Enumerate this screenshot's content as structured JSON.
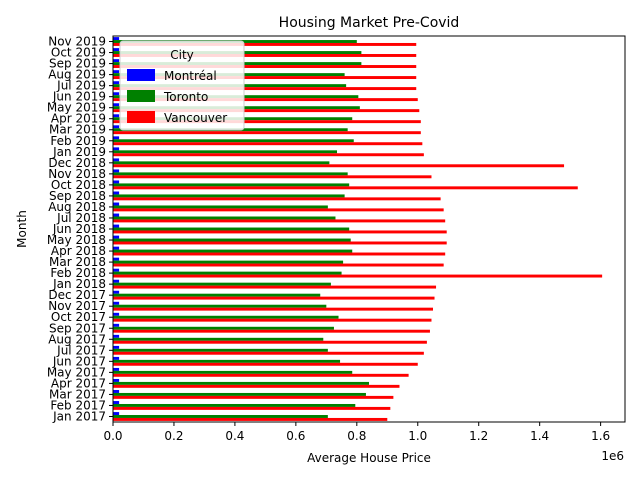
{
  "chart_data": {
    "type": "bar",
    "orientation": "horizontal",
    "title": "Housing Market Pre-Covid",
    "xlabel": "Average House Price",
    "ylabel": "Month",
    "x_scale_label": "1e6",
    "xlim": [
      0,
      1680000
    ],
    "x_ticks": [
      0,
      200000,
      400000,
      600000,
      800000,
      1000000,
      1200000,
      1400000,
      1600000
    ],
    "x_tick_labels": [
      "0.0",
      "0.2",
      "0.4",
      "0.6",
      "0.8",
      "1.0",
      "1.2",
      "1.4",
      "1.6"
    ],
    "grid": false,
    "legend": {
      "title": "City",
      "position": "upper-left"
    },
    "categories": [
      "Jan 2017",
      "Feb 2017",
      "Mar 2017",
      "Apr 2017",
      "May 2017",
      "Jun 2017",
      "Jul 2017",
      "Aug 2017",
      "Sep 2017",
      "Oct 2017",
      "Nov 2017",
      "Dec 2017",
      "Jan 2018",
      "Feb 2018",
      "Mar 2018",
      "Apr 2018",
      "May 2018",
      "Jun 2018",
      "Jul 2018",
      "Aug 2018",
      "Sep 2018",
      "Oct 2018",
      "Nov 2018",
      "Dec 2018",
      "Jan 2019",
      "Feb 2019",
      "Mar 2019",
      "Apr 2019",
      "May 2019",
      "Jun 2019",
      "Jul 2019",
      "Aug 2019",
      "Sep 2019",
      "Oct 2019",
      "Nov 2019"
    ],
    "series": [
      {
        "name": "Montréal",
        "color": "#0000ff",
        "values": [
          20000,
          20000,
          20000,
          20000,
          20000,
          20000,
          20000,
          20000,
          20000,
          20000,
          20000,
          20000,
          20000,
          20000,
          20000,
          20000,
          20000,
          20000,
          20000,
          20000,
          20000,
          20000,
          20000,
          20000,
          20000,
          20000,
          20000,
          20000,
          20000,
          20000,
          20000,
          20000,
          20000,
          20000,
          20000
        ]
      },
      {
        "name": "Toronto",
        "color": "#008000",
        "values": [
          705000,
          795000,
          830000,
          840000,
          785000,
          745000,
          705000,
          690000,
          725000,
          740000,
          700000,
          680000,
          715000,
          750000,
          755000,
          785000,
          780000,
          775000,
          730000,
          705000,
          760000,
          775000,
          770000,
          710000,
          735000,
          790000,
          770000,
          785000,
          810000,
          805000,
          765000,
          760000,
          815000,
          815000,
          800000
        ]
      },
      {
        "name": "Vancouver",
        "color": "#ff0000",
        "values": [
          900000,
          910000,
          920000,
          940000,
          970000,
          1000000,
          1020000,
          1030000,
          1040000,
          1045000,
          1050000,
          1055000,
          1060000,
          1605000,
          1085000,
          1090000,
          1095000,
          1095000,
          1090000,
          1085000,
          1075000,
          1525000,
          1045000,
          1480000,
          1020000,
          1015000,
          1010000,
          1010000,
          1005000,
          1000000,
          995000,
          995000,
          995000,
          995000,
          995000
        ]
      }
    ]
  }
}
